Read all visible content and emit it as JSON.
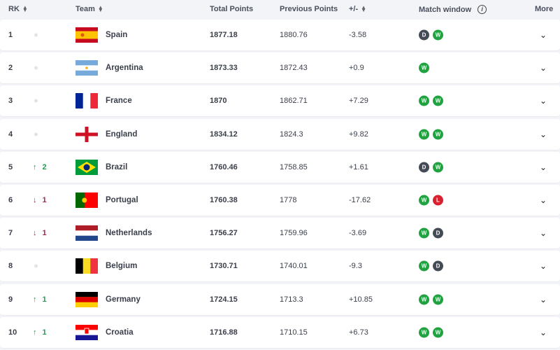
{
  "header": {
    "rank": "RK",
    "team": "Team",
    "total": "Total Points",
    "previous": "Previous Points",
    "diff": "+/-",
    "match_window": "Match window",
    "more": "More"
  },
  "colors": {
    "win": "#1fa23f",
    "draw": "#454a57",
    "loss": "#d9202f",
    "up": "#1e9e4f",
    "down": "#a3284a"
  },
  "rows": [
    {
      "rank": "1",
      "move": "",
      "dir": "none",
      "team": "Spain",
      "flag": "spain",
      "total": "1877.18",
      "previous": "1880.76",
      "diff": "-3.58",
      "results": [
        "D",
        "W"
      ]
    },
    {
      "rank": "2",
      "move": "",
      "dir": "none",
      "team": "Argentina",
      "flag": "argentina",
      "total": "1873.33",
      "previous": "1872.43",
      "diff": "+0.9",
      "results": [
        "W"
      ]
    },
    {
      "rank": "3",
      "move": "",
      "dir": "none",
      "team": "France",
      "flag": "france",
      "total": "1870",
      "previous": "1862.71",
      "diff": "+7.29",
      "results": [
        "W",
        "W"
      ]
    },
    {
      "rank": "4",
      "move": "",
      "dir": "none",
      "team": "England",
      "flag": "england",
      "total": "1834.12",
      "previous": "1824.3",
      "diff": "+9.82",
      "results": [
        "W",
        "W"
      ]
    },
    {
      "rank": "5",
      "move": "2",
      "dir": "up",
      "team": "Brazil",
      "flag": "brazil",
      "total": "1760.46",
      "previous": "1758.85",
      "diff": "+1.61",
      "results": [
        "D",
        "W"
      ]
    },
    {
      "rank": "6",
      "move": "1",
      "dir": "down",
      "team": "Portugal",
      "flag": "portugal",
      "total": "1760.38",
      "previous": "1778",
      "diff": "-17.62",
      "results": [
        "W",
        "L"
      ]
    },
    {
      "rank": "7",
      "move": "1",
      "dir": "down",
      "team": "Netherlands",
      "flag": "netherlands",
      "total": "1756.27",
      "previous": "1759.96",
      "diff": "-3.69",
      "results": [
        "W",
        "D"
      ]
    },
    {
      "rank": "8",
      "move": "",
      "dir": "none",
      "team": "Belgium",
      "flag": "belgium",
      "total": "1730.71",
      "previous": "1740.01",
      "diff": "-9.3",
      "results": [
        "W",
        "D"
      ]
    },
    {
      "rank": "9",
      "move": "1",
      "dir": "up",
      "team": "Germany",
      "flag": "germany",
      "total": "1724.15",
      "previous": "1713.3",
      "diff": "+10.85",
      "results": [
        "W",
        "W"
      ]
    },
    {
      "rank": "10",
      "move": "1",
      "dir": "up",
      "team": "Croatia",
      "flag": "croatia",
      "total": "1716.88",
      "previous": "1710.15",
      "diff": "+6.73",
      "results": [
        "W",
        "W"
      ]
    }
  ]
}
